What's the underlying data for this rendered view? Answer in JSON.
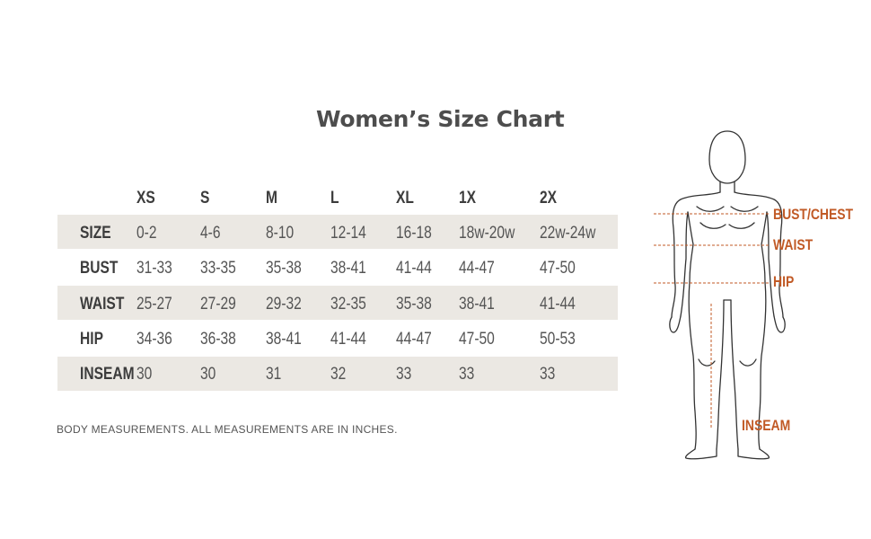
{
  "title": "Women’s Size Chart",
  "sizes": [
    "XS",
    "S",
    "M",
    "L",
    "XL",
    "1X",
    "2X"
  ],
  "rows": [
    {
      "label": "SIZE",
      "values": [
        "0-2",
        "4-6",
        "8-10",
        "12-14",
        "16-18",
        "18w-20w",
        "22w-24w"
      ]
    },
    {
      "label": "BUST",
      "values": [
        "31-33",
        "33-35",
        "35-38",
        "38-41",
        "41-44",
        "44-47",
        "47-50"
      ]
    },
    {
      "label": "WAIST",
      "values": [
        "25-27",
        "27-29",
        "29-32",
        "32-35",
        "35-38",
        "38-41",
        "41-44"
      ]
    },
    {
      "label": "HIP",
      "values": [
        "34-36",
        "36-38",
        "38-41",
        "41-44",
        "44-47",
        "47-50",
        "50-53"
      ]
    },
    {
      "label": "INSEAM",
      "values": [
        "30",
        "30",
        "31",
        "32",
        "33",
        "33",
        "33"
      ]
    }
  ],
  "note": "BODY MEASUREMENTS. ALL MEASUREMENTS ARE IN INCHES.",
  "figure_labels": {
    "bust": "BUST/CHEST",
    "waist": "WAIST",
    "hip": "HIP",
    "inseam": "INSEAM"
  },
  "colors": {
    "accent": "#c15a26",
    "band": "#ebe8e3",
    "text": "#555555"
  }
}
